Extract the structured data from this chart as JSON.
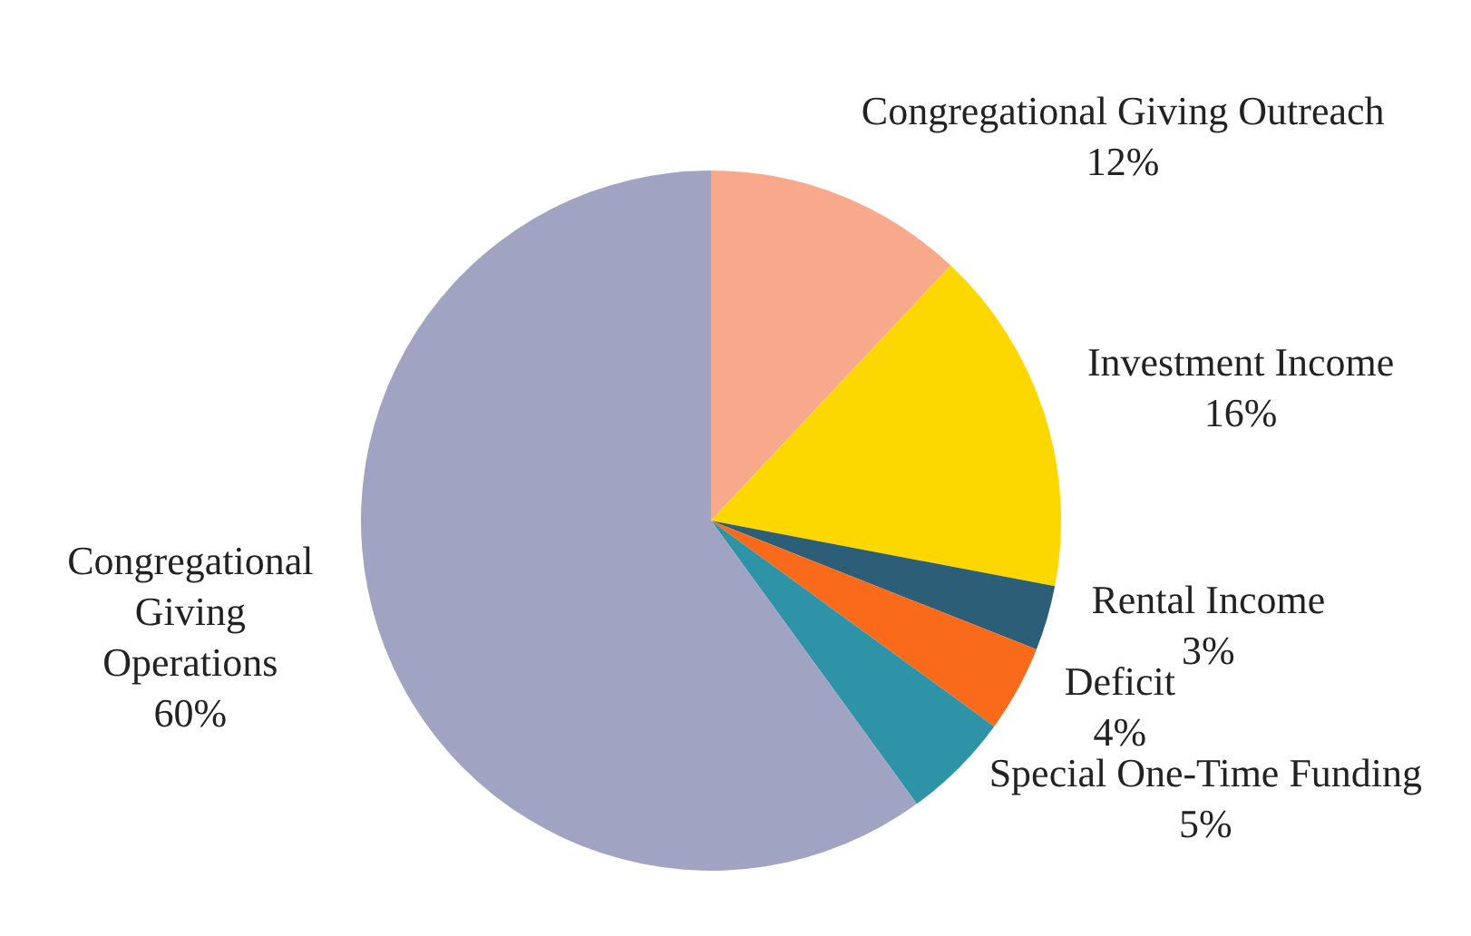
{
  "chart_data": {
    "type": "pie",
    "categories": [
      "Congregational Giving Outreach",
      "Investment Income",
      "Rental Income",
      "Deficit",
      "Special One-Time Funding",
      "Congregational Giving Operations"
    ],
    "values": [
      12,
      16,
      3,
      4,
      5,
      60
    ],
    "colors": [
      "#f9a98b",
      "#fcd800",
      "#2c5e78",
      "#f96a1b",
      "#2f93a8",
      "#a0a4c2"
    ],
    "value_labels": [
      "12%",
      "16%",
      "3%",
      "4%",
      "5%",
      "60%"
    ],
    "legend": false
  }
}
